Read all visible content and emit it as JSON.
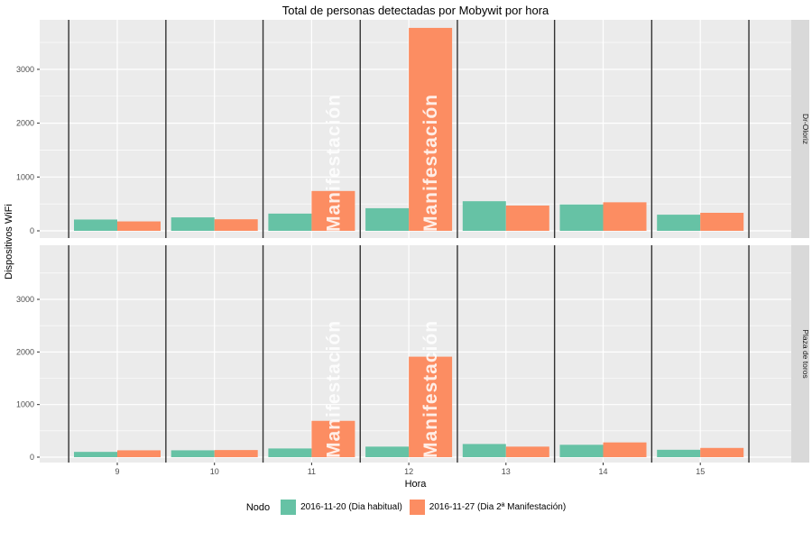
{
  "title": "Total de personas detectadas por Mobywit por hora",
  "axes": {
    "x_label": "Hora",
    "y_label": "Dispositivos WiFi",
    "x_ticks": [
      9,
      10,
      11,
      12,
      13,
      14,
      15
    ],
    "y_ticks": [
      0,
      1000,
      2000,
      3000
    ]
  },
  "facets": [
    "Dr-Oloriz",
    "Plaza de toros"
  ],
  "legend": {
    "title": "Nodo",
    "items": [
      {
        "label": "2016-11-20 (Dia habitual)",
        "color": "#66C2A5"
      },
      {
        "label": "2016-11-27 (Dia 2ª Manifestación)",
        "color": "#FC8D62"
      }
    ]
  },
  "annotation": {
    "label": "Manifestación",
    "hours": [
      11,
      12
    ]
  },
  "colors": {
    "panel_bg": "#EBEBEB",
    "strip_bg": "#D9D9D9",
    "grid": "#FFFFFF",
    "vline": "#333333",
    "tick_text": "#4D4D4D",
    "green": "#66C2A5",
    "orange": "#FC8D62",
    "annotation_text": "rgba(255,255,255,0.85)"
  },
  "chart_data": {
    "type": "bar",
    "title": "Total de personas detectadas por Mobywit por hora",
    "xlabel": "Hora",
    "ylabel": "Dispositivos WiFi",
    "categories": [
      9,
      10,
      11,
      12,
      13,
      14,
      15
    ],
    "ylim": [
      0,
      3920
    ],
    "grid": true,
    "legend_position": "bottom",
    "vlines_at_half_hours": [
      8.5,
      9.5,
      10.5,
      11.5,
      12.5,
      13.5,
      14.5,
      15.5
    ],
    "facets": [
      {
        "name": "Dr-Oloriz",
        "series": [
          {
            "name": "2016-11-20 (Dia habitual)",
            "values": [
              210,
              250,
              320,
              420,
              550,
              490,
              300
            ]
          },
          {
            "name": "2016-11-27 (Dia 2ª Manifestación)",
            "values": [
              175,
              215,
              740,
              3770,
              470,
              530,
              335
            ]
          }
        ]
      },
      {
        "name": "Plaza de toros",
        "series": [
          {
            "name": "2016-11-20 (Dia habitual)",
            "values": [
              100,
              130,
              165,
              200,
              250,
              235,
              140
            ]
          },
          {
            "name": "2016-11-27 (Dia 2ª Manifestación)",
            "values": [
              130,
              135,
              690,
              1910,
              200,
              280,
              175
            ]
          }
        ]
      }
    ]
  }
}
